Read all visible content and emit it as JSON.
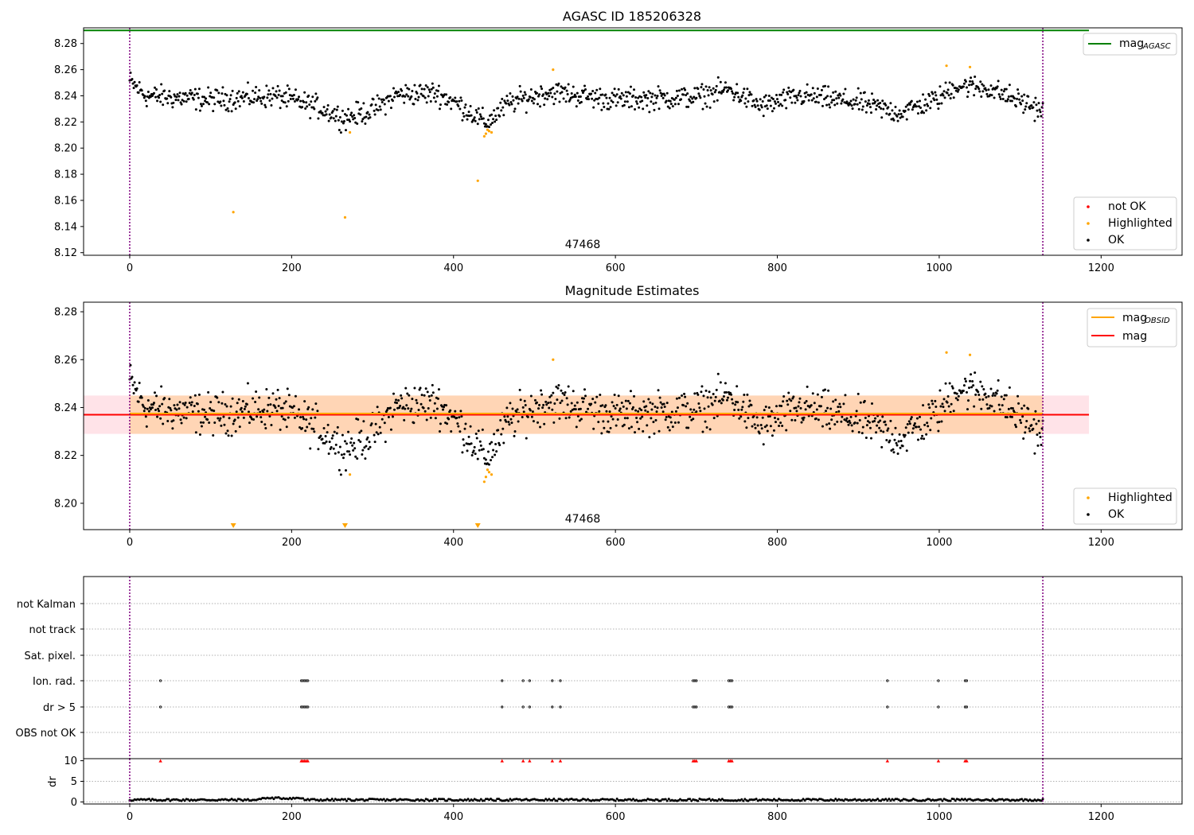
{
  "chart_data": [
    {
      "type": "scatter",
      "title": "AGASC ID 185206328",
      "xlim": [
        -57,
        1300
      ],
      "ylim": [
        8.118,
        8.292
      ],
      "xticks": [
        0,
        200,
        400,
        600,
        800,
        1000,
        1200
      ],
      "yticks": [
        8.12,
        8.14,
        8.16,
        8.18,
        8.2,
        8.22,
        8.24,
        8.26,
        8.28
      ],
      "ytick_labels": [
        "8.12",
        "8.14",
        "8.16",
        "8.18",
        "8.20",
        "8.22",
        "8.24",
        "8.26",
        "8.28"
      ],
      "grid": false,
      "mag_agasc": 8.29,
      "obsid_boundaries": [
        0,
        1128
      ],
      "obsid_label": "47468",
      "series": [
        {
          "name": "not OK",
          "color": "#ff0000",
          "points": []
        },
        {
          "name": "Highlighted",
          "color": "#ffa500",
          "points": [
            [
              128,
              8.151
            ],
            [
              266,
              8.147
            ],
            [
              272,
              8.212
            ],
            [
              430,
              8.175
            ],
            [
              438,
              8.209
            ],
            [
              440,
              8.211
            ],
            [
              442,
              8.214
            ],
            [
              444,
              8.213
            ],
            [
              447,
              8.212
            ],
            [
              523,
              8.26
            ],
            [
              1009,
              8.263
            ],
            [
              1038,
              8.262
            ]
          ]
        },
        {
          "name": "OK",
          "color": "#000000",
          "generated_trend": [
            [
              0,
              8.251
            ],
            [
              20,
              8.24
            ],
            [
              100,
              8.237
            ],
            [
              180,
              8.24
            ],
            [
              230,
              8.232
            ],
            [
              265,
              8.223
            ],
            [
              300,
              8.229
            ],
            [
              330,
              8.241
            ],
            [
              380,
              8.242
            ],
            [
              410,
              8.232
            ],
            [
              440,
              8.219
            ],
            [
              470,
              8.235
            ],
            [
              520,
              8.243
            ],
            [
              600,
              8.237
            ],
            [
              700,
              8.239
            ],
            [
              740,
              8.245
            ],
            [
              780,
              8.232
            ],
            [
              830,
              8.24
            ],
            [
              900,
              8.235
            ],
            [
              950,
              8.227
            ],
            [
              1000,
              8.238
            ],
            [
              1020,
              8.248
            ],
            [
              1060,
              8.246
            ],
            [
              1100,
              8.236
            ],
            [
              1128,
              8.229
            ]
          ]
        }
      ],
      "legend": [
        {
          "label": "mag",
          "sub": "AGASC",
          "color": "#008000"
        }
      ],
      "legend2": [
        {
          "label": "not OK",
          "color": "#ff0000"
        },
        {
          "label": "Highlighted",
          "color": "#ffa500"
        },
        {
          "label": "OK",
          "color": "#000000"
        }
      ]
    },
    {
      "type": "scatter",
      "title": "Magnitude Estimates",
      "xlim": [
        -57,
        1300
      ],
      "ylim": [
        8.189,
        8.284
      ],
      "xticks": [
        0,
        200,
        400,
        600,
        800,
        1000,
        1200
      ],
      "yticks": [
        8.2,
        8.22,
        8.24,
        8.26,
        8.28
      ],
      "ytick_labels": [
        "8.20",
        "8.22",
        "8.24",
        "8.26",
        "8.28"
      ],
      "mag": 8.237,
      "mag_band": [
        8.229,
        8.245
      ],
      "mag_obsid": 8.237,
      "obsid_boundaries": [
        0,
        1128
      ],
      "obsid_label": "47468",
      "offscale_markers": [
        128,
        266,
        430
      ],
      "series": [
        {
          "name": "Highlighted",
          "color": "#ffa500",
          "points": [
            [
              272,
              8.212
            ],
            [
              438,
              8.209
            ],
            [
              440,
              8.211
            ],
            [
              442,
              8.214
            ],
            [
              444,
              8.213
            ],
            [
              447,
              8.212
            ],
            [
              523,
              8.26
            ],
            [
              1009,
              8.263
            ],
            [
              1038,
              8.262
            ]
          ]
        },
        {
          "name": "OK",
          "color": "#000000",
          "generated_trend": "same as panel 1"
        }
      ],
      "legend": [
        {
          "label": "mag",
          "sub": "OBSID",
          "color": "#ffa500"
        },
        {
          "label": "mag",
          "sub": "",
          "color": "#ff0000"
        }
      ],
      "legend2": [
        {
          "label": "Highlighted",
          "color": "#ffa500"
        },
        {
          "label": "OK",
          "color": "#000000"
        }
      ]
    },
    {
      "type": "scatter",
      "title": "",
      "xlim": [
        -57,
        1300
      ],
      "xticks": [
        0,
        200,
        400,
        600,
        800,
        1000,
        1200
      ],
      "categories": [
        "not Kalman",
        "not track",
        "Sat. pixel.",
        "Ion. rad.",
        "dr > 5",
        "OBS not OK"
      ],
      "flag_x": [
        38,
        212,
        214,
        216,
        218,
        220,
        460,
        486,
        494,
        522,
        532,
        696,
        698,
        700,
        740,
        742,
        744,
        936,
        999,
        1032,
        1034
      ],
      "obsid_boundaries": [
        0,
        1128
      ]
    },
    {
      "type": "line",
      "ylabel": "dr",
      "xlim": [
        -57,
        1300
      ],
      "ylim": [
        -0.5,
        10.5
      ],
      "yticks": [
        0,
        5,
        10
      ],
      "xticks": [
        0,
        200,
        400,
        600,
        800,
        1000,
        1200
      ],
      "dr_above_10_x": [
        38,
        212,
        214,
        216,
        218,
        220,
        460,
        486,
        494,
        522,
        532,
        696,
        698,
        700,
        740,
        742,
        744,
        936,
        999,
        1032,
        1034
      ],
      "obsid_boundaries": [
        0,
        1128
      ]
    }
  ]
}
